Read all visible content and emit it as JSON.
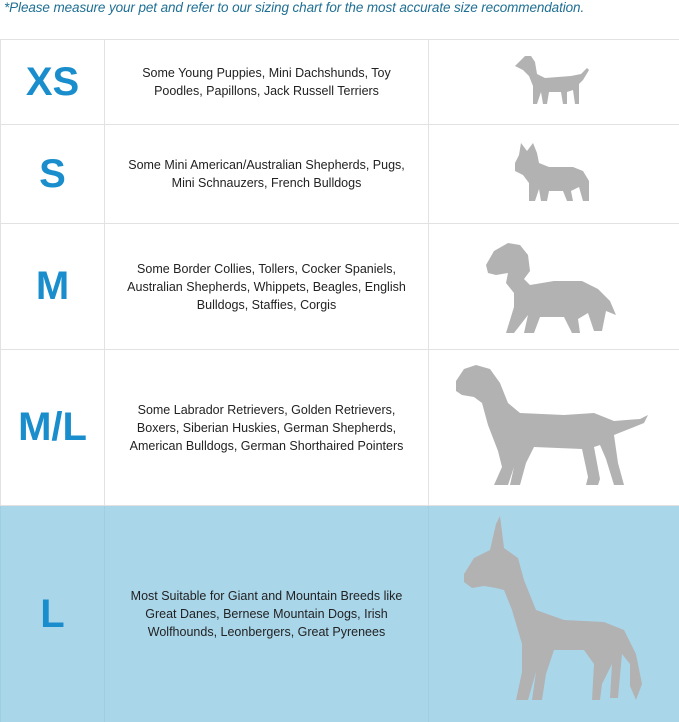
{
  "note": "*Please measure your pet and refer to our sizing chart for the most accurate size recommendation.",
  "colors": {
    "size_label": "#1a8ecc",
    "highlight_row": "#aad6ea",
    "silhouette": "#b2b2b2",
    "note": "#1f6f93"
  },
  "rows": [
    {
      "size": "XS",
      "description": "Some Young Puppies, Mini Dachshunds, Toy Poodles, Papillons, Jack Russell Terriers",
      "icon": "small-dog-silhouette-icon",
      "highlighted": false
    },
    {
      "size": "S",
      "description": "Some Mini American/Australian Shepherds, Pugs, Mini Schnauzers, French Bulldogs",
      "icon": "french-bulldog-silhouette-icon",
      "highlighted": false
    },
    {
      "size": "M",
      "description": "Some Border Collies, Tollers, Cocker Spaniels, Australian Shepherds, Whippets, Beagles, English Bulldogs, Staffies, Corgis",
      "icon": "spaniel-silhouette-icon",
      "highlighted": false
    },
    {
      "size": "M/L",
      "description": "Some Labrador Retrievers, Golden Retrievers, Boxers, Siberian Huskies, German Shepherds, American Bulldogs, German Shorthaired Pointers",
      "icon": "labrador-silhouette-icon",
      "highlighted": false
    },
    {
      "size": "L",
      "description": "Most Suitable for Giant and Mountain Breeds like Great Danes, Bernese Mountain Dogs, Irish Wolfhounds, Leonbergers, Great Pyrenees",
      "icon": "great-dane-silhouette-icon",
      "highlighted": true
    }
  ]
}
